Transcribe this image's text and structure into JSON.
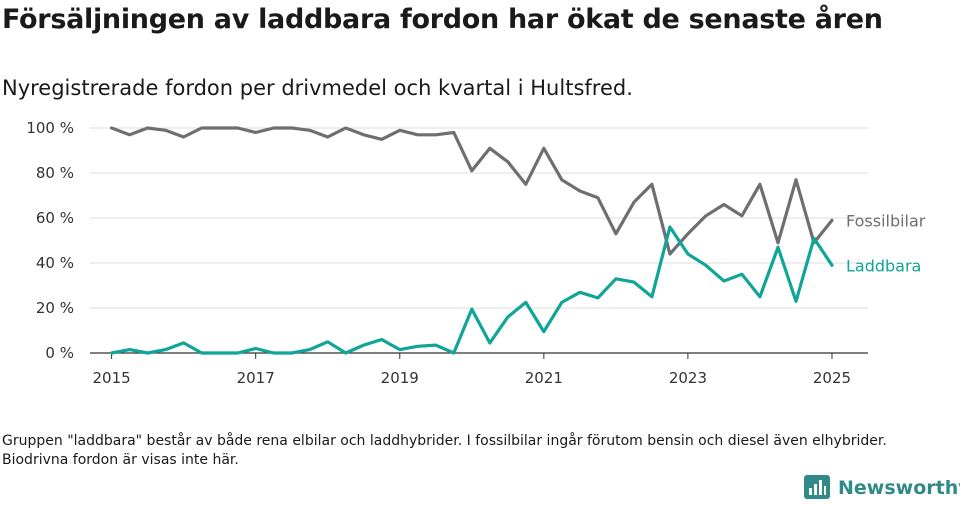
{
  "title": "Försäljningen av laddbara fordon har ökat de senaste åren",
  "subtitle": "Nyregistrerade fordon per drivmedel och kvartal i Hultsfred.",
  "footnote": "Gruppen \"laddbara\" består av både rena elbilar och laddhybrider. I fossilbilar ingår förutom bensin och diesel även elhybrider. Biodrivna fordon är visas inte här.",
  "brand": {
    "name": "Newsworthy",
    "icon": "newsworthy-logo-icon",
    "color": "#2f8a88"
  },
  "chart_data": {
    "type": "line",
    "title": "",
    "xlabel": "",
    "ylabel": "",
    "x_ticks": [
      2015,
      2017,
      2019,
      2021,
      2023,
      2025
    ],
    "y_ticks": [
      0,
      20,
      40,
      60,
      80,
      100
    ],
    "y_tick_labels": [
      "0 %",
      "20 %",
      "40 %",
      "60 %",
      "80 %",
      "100 %"
    ],
    "xlim": [
      2014.7,
      2025.5
    ],
    "ylim": [
      0,
      100
    ],
    "grid": "horizontal",
    "x": [
      2015.0,
      2015.25,
      2015.5,
      2015.75,
      2016.0,
      2016.25,
      2016.5,
      2016.75,
      2017.0,
      2017.25,
      2017.5,
      2017.75,
      2018.0,
      2018.25,
      2018.5,
      2018.75,
      2019.0,
      2019.25,
      2019.5,
      2019.75,
      2020.0,
      2020.25,
      2020.5,
      2020.75,
      2021.0,
      2021.25,
      2021.5,
      2021.75,
      2022.0,
      2022.25,
      2022.5,
      2022.75,
      2023.0,
      2023.25,
      2023.5,
      2023.75,
      2024.0,
      2024.25,
      2024.5,
      2024.75,
      2025.0
    ],
    "series": [
      {
        "name": "Fossilbilar",
        "color": "#6e6e73",
        "values": [
          100,
          97,
          100,
          99,
          96,
          100,
          100,
          100,
          98,
          100,
          100,
          99,
          96,
          100,
          97,
          95,
          99,
          97,
          97,
          98,
          81,
          91,
          85,
          75,
          91,
          77,
          72,
          69,
          53,
          67,
          75,
          44,
          53,
          61,
          66,
          61,
          75,
          49,
          77,
          49,
          59
        ]
      },
      {
        "name": "Laddbara",
        "color": "#0fa597",
        "values": [
          0,
          1.5,
          0,
          1.5,
          4.5,
          0,
          0,
          0,
          2,
          0,
          0,
          1.5,
          5,
          0,
          3.5,
          6,
          1.5,
          3,
          3.5,
          0,
          19.5,
          4.5,
          16,
          22.5,
          9.5,
          22.5,
          27,
          24.5,
          33,
          31.5,
          25,
          56,
          44,
          39,
          32,
          35,
          25,
          47,
          23,
          51,
          39
        ]
      }
    ]
  }
}
